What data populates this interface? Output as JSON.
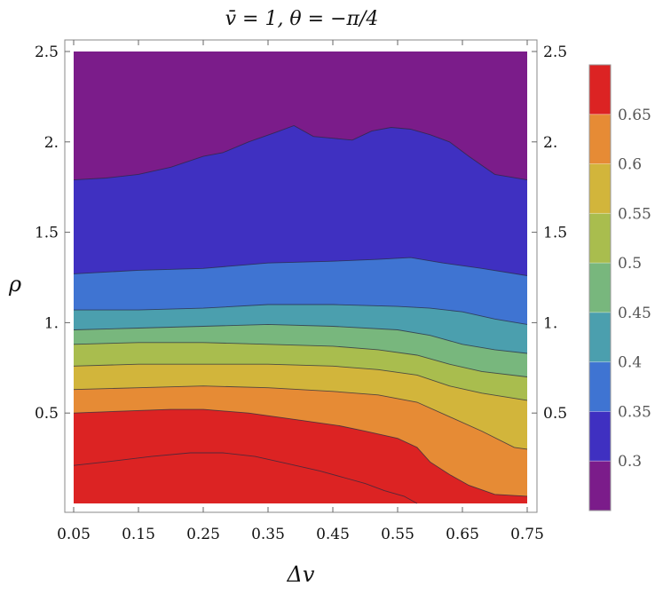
{
  "chart_data": {
    "type": "contour",
    "title": "v̄ = 1,    θ = −π/4",
    "xlabel": "Δv",
    "ylabel": "ρ",
    "xlim": [
      0.03,
      0.76
    ],
    "ylim": [
      0.0,
      2.5
    ],
    "x_ticks": [
      "0.05",
      "0.15",
      "0.25",
      "0.35",
      "0.45",
      "0.55",
      "0.65",
      "0.75"
    ],
    "y_ticks": [
      "0.5",
      "1.",
      "1.5",
      "2.",
      "2.5"
    ],
    "colorbar": {
      "ticks": [
        "0.3",
        "0.35",
        "0.4",
        "0.45",
        "0.5",
        "0.55",
        "0.6",
        "0.65"
      ],
      "levels": [
        {
          "from": 0.25,
          "to": 0.3,
          "color": "#7b1c8a"
        },
        {
          "from": 0.3,
          "to": 0.35,
          "color": "#3f30c1"
        },
        {
          "from": 0.35,
          "to": 0.4,
          "color": "#3f74d2"
        },
        {
          "from": 0.4,
          "to": 0.45,
          "color": "#4b9fae"
        },
        {
          "from": 0.45,
          "to": 0.5,
          "color": "#78b77d"
        },
        {
          "from": 0.5,
          "to": 0.55,
          "color": "#a9bd4e"
        },
        {
          "from": 0.55,
          "to": 0.6,
          "color": "#d2b53b"
        },
        {
          "from": 0.6,
          "to": 0.65,
          "color": "#e68b35"
        },
        {
          "from": 0.65,
          "to": 0.7,
          "color": "#dc2323"
        }
      ]
    },
    "contours": [
      {
        "level": 0.3,
        "points": [
          [
            0.05,
            1.79
          ],
          [
            0.1,
            1.8
          ],
          [
            0.15,
            1.82
          ],
          [
            0.2,
            1.86
          ],
          [
            0.25,
            1.92
          ],
          [
            0.28,
            1.94
          ],
          [
            0.32,
            2.0
          ],
          [
            0.36,
            2.05
          ],
          [
            0.39,
            2.09
          ],
          [
            0.42,
            2.03
          ],
          [
            0.45,
            2.02
          ],
          [
            0.48,
            2.01
          ],
          [
            0.51,
            2.06
          ],
          [
            0.54,
            2.08
          ],
          [
            0.57,
            2.07
          ],
          [
            0.6,
            2.04
          ],
          [
            0.63,
            2.0
          ],
          [
            0.66,
            1.92
          ],
          [
            0.7,
            1.82
          ],
          [
            0.75,
            1.79
          ]
        ]
      },
      {
        "level": 0.35,
        "points": [
          [
            0.05,
            1.27
          ],
          [
            0.15,
            1.29
          ],
          [
            0.25,
            1.3
          ],
          [
            0.35,
            1.33
          ],
          [
            0.45,
            1.34
          ],
          [
            0.52,
            1.35
          ],
          [
            0.57,
            1.36
          ],
          [
            0.62,
            1.33
          ],
          [
            0.68,
            1.3
          ],
          [
            0.75,
            1.26
          ]
        ]
      },
      {
        "level": 0.4,
        "points": [
          [
            0.05,
            1.07
          ],
          [
            0.15,
            1.07
          ],
          [
            0.25,
            1.08
          ],
          [
            0.35,
            1.1
          ],
          [
            0.45,
            1.1
          ],
          [
            0.55,
            1.09
          ],
          [
            0.6,
            1.08
          ],
          [
            0.65,
            1.06
          ],
          [
            0.7,
            1.02
          ],
          [
            0.75,
            0.99
          ]
        ]
      },
      {
        "level": 0.45,
        "points": [
          [
            0.05,
            0.96
          ],
          [
            0.15,
            0.97
          ],
          [
            0.25,
            0.98
          ],
          [
            0.35,
            0.99
          ],
          [
            0.45,
            0.98
          ],
          [
            0.55,
            0.96
          ],
          [
            0.6,
            0.93
          ],
          [
            0.65,
            0.88
          ],
          [
            0.7,
            0.85
          ],
          [
            0.75,
            0.83
          ]
        ]
      },
      {
        "level": 0.5,
        "points": [
          [
            0.05,
            0.88
          ],
          [
            0.15,
            0.89
          ],
          [
            0.25,
            0.89
          ],
          [
            0.35,
            0.88
          ],
          [
            0.45,
            0.87
          ],
          [
            0.52,
            0.85
          ],
          [
            0.58,
            0.82
          ],
          [
            0.63,
            0.77
          ],
          [
            0.68,
            0.73
          ],
          [
            0.75,
            0.7
          ]
        ]
      },
      {
        "level": 0.55,
        "points": [
          [
            0.05,
            0.76
          ],
          [
            0.15,
            0.77
          ],
          [
            0.25,
            0.77
          ],
          [
            0.35,
            0.77
          ],
          [
            0.45,
            0.76
          ],
          [
            0.52,
            0.74
          ],
          [
            0.58,
            0.71
          ],
          [
            0.63,
            0.65
          ],
          [
            0.68,
            0.61
          ],
          [
            0.75,
            0.57
          ]
        ]
      },
      {
        "level": 0.6,
        "points": [
          [
            0.05,
            0.63
          ],
          [
            0.15,
            0.64
          ],
          [
            0.25,
            0.65
          ],
          [
            0.35,
            0.64
          ],
          [
            0.45,
            0.62
          ],
          [
            0.52,
            0.6
          ],
          [
            0.58,
            0.56
          ],
          [
            0.63,
            0.48
          ],
          [
            0.68,
            0.4
          ],
          [
            0.73,
            0.31
          ],
          [
            0.75,
            0.3
          ]
        ]
      },
      {
        "level": 0.65,
        "points": [
          [
            0.05,
            0.5
          ],
          [
            0.12,
            0.51
          ],
          [
            0.2,
            0.52
          ],
          [
            0.25,
            0.52
          ],
          [
            0.32,
            0.5
          ],
          [
            0.4,
            0.46
          ],
          [
            0.46,
            0.43
          ],
          [
            0.5,
            0.4
          ],
          [
            0.55,
            0.36
          ],
          [
            0.58,
            0.31
          ],
          [
            0.6,
            0.23
          ],
          [
            0.63,
            0.16
          ],
          [
            0.66,
            0.1
          ],
          [
            0.7,
            0.05
          ],
          [
            0.75,
            0.04
          ]
        ]
      },
      {
        "level": 0.7,
        "points": [
          [
            0.05,
            0.21
          ],
          [
            0.1,
            0.23
          ],
          [
            0.17,
            0.26
          ],
          [
            0.23,
            0.28
          ],
          [
            0.28,
            0.28
          ],
          [
            0.33,
            0.26
          ],
          [
            0.38,
            0.22
          ],
          [
            0.43,
            0.18
          ],
          [
            0.47,
            0.14
          ],
          [
            0.5,
            0.11
          ],
          [
            0.53,
            0.07
          ],
          [
            0.56,
            0.04
          ],
          [
            0.58,
            0.0
          ]
        ]
      }
    ]
  }
}
